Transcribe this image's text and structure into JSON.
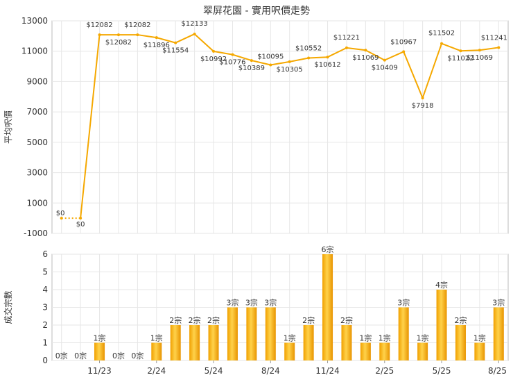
{
  "title": "翠屏花園 - 實用呎價走勢",
  "chart_data": [
    {
      "type": "line",
      "ylabel": "平均呎價",
      "ylim": [
        -1000,
        13000
      ],
      "yticks": [
        -1000,
        1000,
        3000,
        5000,
        7000,
        9000,
        11000,
        13000
      ],
      "grid": true,
      "color": "#f5a800",
      "values": [
        0,
        0,
        12082,
        12082,
        12082,
        11896,
        11554,
        12133,
        10992,
        10776,
        10389,
        10095,
        10305,
        10552,
        10612,
        11221,
        11069,
        10409,
        10967,
        7918,
        11502,
        11022,
        11069,
        11241
      ],
      "labels": [
        "$0",
        "$0",
        "$12082",
        "$12082",
        "$12082",
        "$11896",
        "$11554",
        "$12133",
        "$10992",
        "$10776",
        "$10389",
        "$10095",
        "$10305",
        "$10552",
        "$10612",
        "$11221",
        "$11069",
        "$10409",
        "$10967",
        "$7918",
        "$11502",
        "$11022",
        "$11069",
        "$11241"
      ]
    },
    {
      "type": "bar",
      "ylabel": "成交宗數",
      "ylim": [
        0,
        6
      ],
      "yticks": [
        0,
        1,
        2,
        3,
        4,
        5,
        6
      ],
      "grid": true,
      "color": "#f5a800",
      "categories": [
        "",
        "",
        "11/23",
        "",
        "",
        "2/24",
        "",
        "",
        "5/24",
        "",
        "",
        "8/24",
        "",
        "",
        "11/24",
        "",
        "",
        "2/25",
        "",
        "",
        "5/25",
        "",
        "",
        "8/25"
      ],
      "values": [
        0,
        0,
        1,
        0,
        0,
        1,
        2,
        2,
        2,
        3,
        3,
        3,
        1,
        2,
        6,
        2,
        1,
        1,
        3,
        1,
        4,
        2,
        1,
        3
      ],
      "labels": [
        "0宗",
        "0宗",
        "1宗",
        "0宗",
        "0宗",
        "1宗",
        "2宗",
        "2宗",
        "2宗",
        "3宗",
        "3宗",
        "3宗",
        "1宗",
        "2宗",
        "6宗",
        "2宗",
        "1宗",
        "1宗",
        "3宗",
        "1宗",
        "4宗",
        "2宗",
        "1宗",
        "3宗"
      ]
    }
  ]
}
